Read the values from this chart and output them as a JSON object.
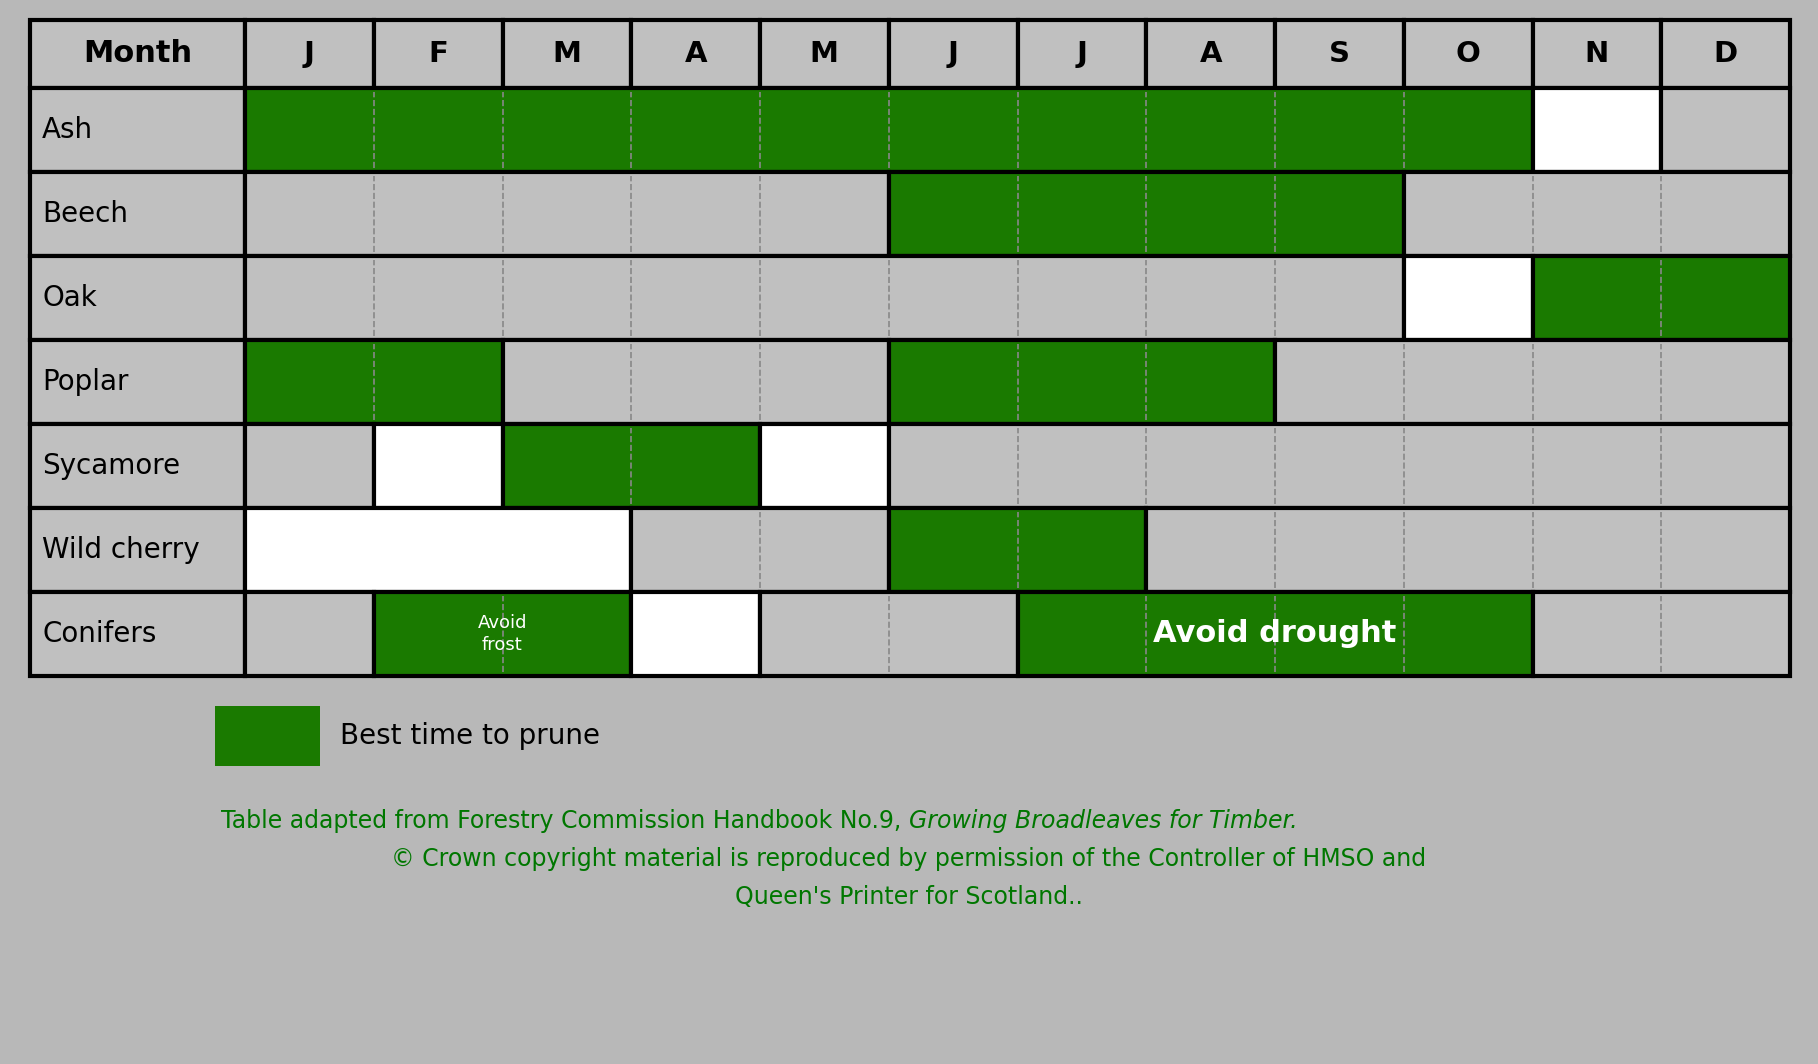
{
  "months": [
    "J",
    "F",
    "M",
    "A",
    "M",
    "J",
    "J",
    "A",
    "S",
    "O",
    "N",
    "D"
  ],
  "rows": [
    "Ash",
    "Beech",
    "Oak",
    "Poplar",
    "Sycamore",
    "Wild cherry",
    "Conifers"
  ],
  "green_color": "#1a7a00",
  "white_color": "#ffffff",
  "gray_color": "#c0c0c0",
  "bg_color": "#b8b8b8",
  "cell_data": {
    "Ash": [
      "G",
      "G",
      "G",
      "G",
      "G",
      "G",
      "G",
      "G",
      "G",
      "G",
      "W",
      "X"
    ],
    "Beech": [
      "X",
      "X",
      "X",
      "X",
      "X",
      "G",
      "G",
      "G",
      "G",
      "X",
      "X",
      "X"
    ],
    "Oak": [
      "X",
      "X",
      "X",
      "X",
      "X",
      "X",
      "X",
      "X",
      "X",
      "W",
      "G",
      "G"
    ],
    "Poplar": [
      "G",
      "G",
      "X",
      "X",
      "X",
      "G",
      "G",
      "G",
      "X",
      "X",
      "X",
      "X"
    ],
    "Sycamore": [
      "X",
      "W",
      "G",
      "G",
      "W",
      "X",
      "X",
      "X",
      "X",
      "X",
      "X",
      "X"
    ],
    "Wild cherry": [
      "W",
      "W",
      "W",
      "X",
      "X",
      "G",
      "G",
      "X",
      "X",
      "X",
      "X",
      "X"
    ],
    "Conifers": [
      "X",
      "G",
      "G",
      "W",
      "X",
      "X",
      "G",
      "G",
      "G",
      "G",
      "X",
      "X"
    ]
  },
  "avoid_frost_cols": [
    1,
    2
  ],
  "avoid_drought_cols": [
    6,
    7,
    8,
    9
  ],
  "title_line1_normal": "Table adapted from Forestry Commission Handbook No.9, ",
  "title_line1_italic": "Growing Broadleaves for Timber.",
  "title_line2": "© Crown copyright material is reproduced by permission of the Controller of HMSO and",
  "title_line3": "Queen's Printer for Scotland..",
  "legend_label": "Best time to prune",
  "text_color": "#007700",
  "caption_fontsize": 17,
  "header_fontsize": 22,
  "row_label_fontsize": 20,
  "month_fontsize": 21,
  "legend_fontsize": 20
}
